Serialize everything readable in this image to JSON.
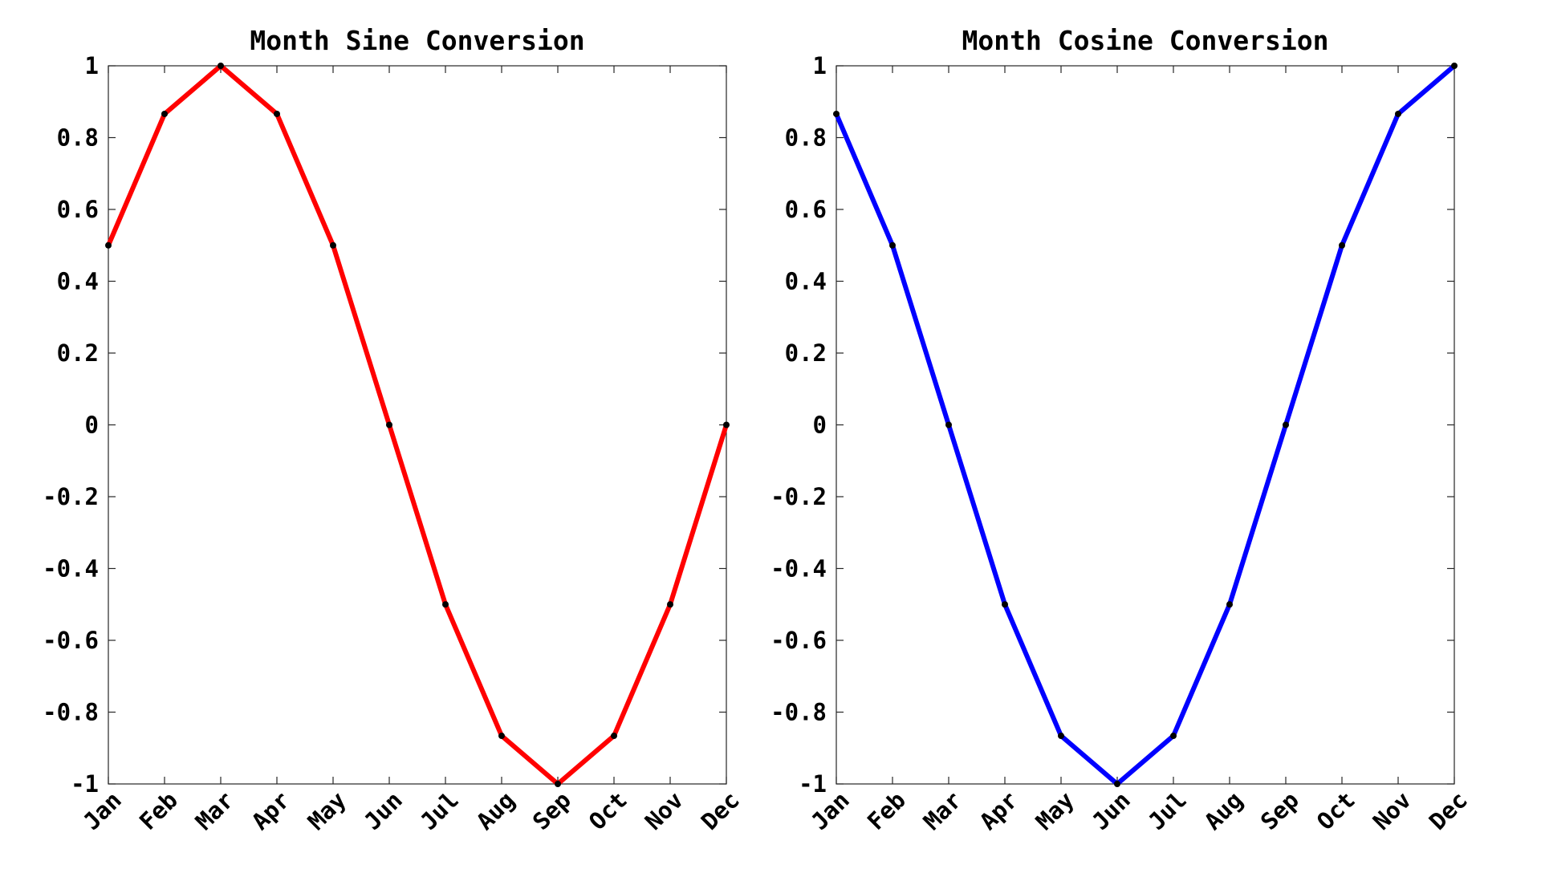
{
  "chart_data": [
    {
      "type": "line",
      "title": "Month Sine Conversion",
      "xlabel": "",
      "ylabel": "",
      "categories": [
        "Jan",
        "Feb",
        "Mar",
        "Apr",
        "May",
        "Jun",
        "Jul",
        "Aug",
        "Sep",
        "Oct",
        "Nov",
        "Dec"
      ],
      "values": [
        0.5,
        0.866,
        1,
        0.866,
        0.5,
        0,
        -0.5,
        -0.866,
        -1,
        -0.866,
        -0.5,
        0
      ],
      "ylim": [
        -1,
        1
      ],
      "yticks": [
        1,
        0.8,
        0.6,
        0.4,
        0.2,
        0,
        -0.2,
        -0.4,
        -0.6,
        -0.8,
        -1
      ],
      "ytick_labels": [
        "1",
        "0.8",
        "0.6",
        "0.4",
        "0.2",
        "0",
        "-0.2",
        "-0.4",
        "-0.6",
        "-0.8",
        "-1"
      ],
      "line_color": "#ff0000",
      "marker_color": "#000000",
      "grid": false,
      "legend": "none"
    },
    {
      "type": "line",
      "title": "Month Cosine Conversion",
      "xlabel": "",
      "ylabel": "",
      "categories": [
        "Jan",
        "Feb",
        "Mar",
        "Apr",
        "May",
        "Jun",
        "Jul",
        "Aug",
        "Sep",
        "Oct",
        "Nov",
        "Dec"
      ],
      "values": [
        0.866,
        0.5,
        0,
        -0.5,
        -0.866,
        -1,
        -0.866,
        -0.5,
        0,
        0.5,
        0.866,
        1
      ],
      "ylim": [
        -1,
        1
      ],
      "yticks": [
        1,
        0.8,
        0.6,
        0.4,
        0.2,
        0,
        -0.2,
        -0.4,
        -0.6,
        -0.8,
        -1
      ],
      "ytick_labels": [
        "1",
        "0.8",
        "0.6",
        "0.4",
        "0.2",
        "0",
        "-0.2",
        "-0.4",
        "-0.6",
        "-0.8",
        "-1"
      ],
      "line_color": "#0000ff",
      "marker_color": "#000000",
      "grid": false,
      "legend": "none"
    }
  ]
}
